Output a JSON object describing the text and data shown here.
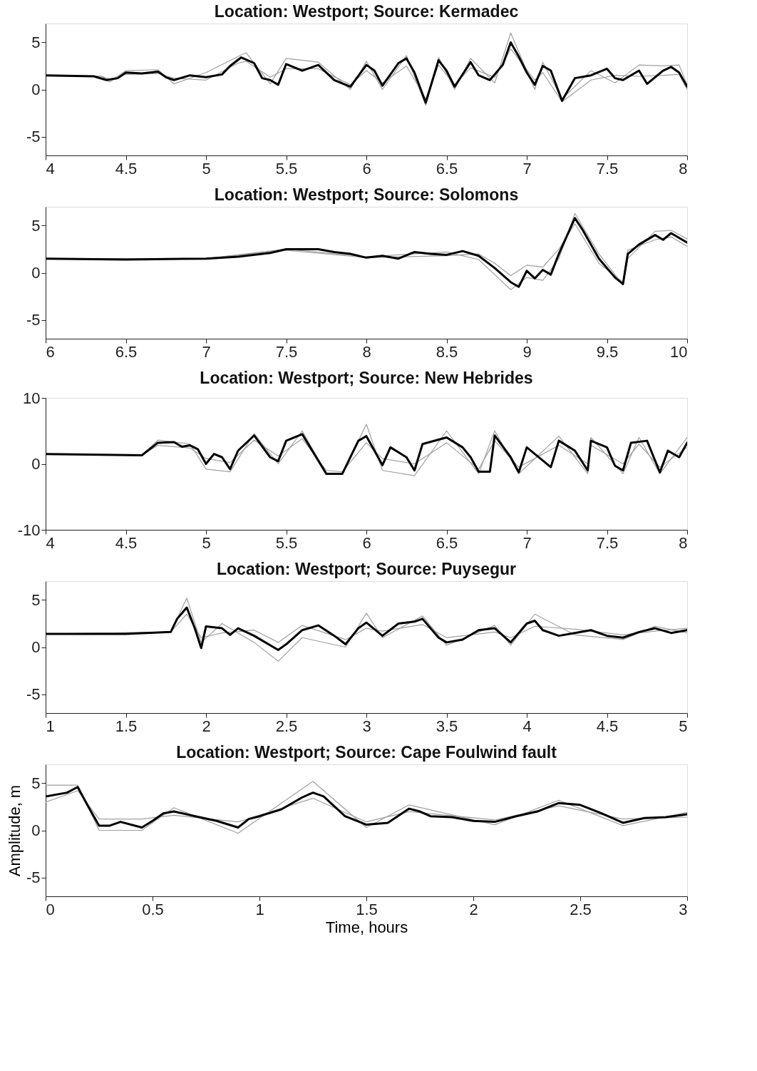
{
  "chart_data": [
    {
      "type": "line",
      "title": "Location: Westport; Source: Kermadec",
      "xlim": [
        4,
        8
      ],
      "ylim": [
        -7,
        7
      ],
      "xticks": [
        4,
        4.5,
        5,
        5.5,
        6,
        6.5,
        7,
        7.5,
        8
      ],
      "yticks": [
        -5,
        0,
        5
      ],
      "grid": false,
      "series": [
        {
          "color": "#a0a0a0",
          "x": [
            4,
            4.35,
            4.4,
            4.5,
            4.7,
            4.8,
            5,
            5.2,
            5.25,
            5.4,
            5.5,
            5.7,
            5.9,
            6,
            6.1,
            6.25,
            6.37,
            6.45,
            6.55,
            6.65,
            6.8,
            6.9,
            7.05,
            7.1,
            7.22,
            7.4,
            7.55,
            7.7,
            7.85,
            7.95,
            8
          ],
          "values": [
            1.5,
            1.4,
            0.8,
            2.0,
            2.1,
            0.6,
            1.8,
            3.5,
            3.9,
            0.6,
            3.3,
            2.9,
            0.0,
            3.0,
            0.0,
            3.6,
            -1.7,
            3.4,
            0.0,
            3.3,
            0.7,
            6.0,
            0.0,
            2.9,
            -1.0,
            2.0,
            0.7,
            2.6,
            2.5,
            2.6,
            0.5
          ]
        },
        {
          "color": "#a0a0a0",
          "x": [
            4,
            4.35,
            4.4,
            4.5,
            4.7,
            4.8,
            5,
            5.2,
            5.25,
            5.4,
            5.5,
            5.7,
            5.9,
            6,
            6.1,
            6.25,
            6.37,
            6.45,
            6.55,
            6.65,
            6.8,
            6.9,
            7.05,
            7.1,
            7.22,
            7.4,
            7.55,
            7.7,
            7.85,
            7.95,
            8
          ],
          "values": [
            1.5,
            1.4,
            1.1,
            1.6,
            1.7,
            1.2,
            1.0,
            2.8,
            3.0,
            1.3,
            2.2,
            2.2,
            0.5,
            2.0,
            0.7,
            2.5,
            -1.0,
            2.6,
            0.5,
            2.3,
            1.3,
            4.3,
            1.0,
            1.8,
            -1.3,
            1.0,
            1.5,
            1.4,
            1.5,
            1.6,
            0.0
          ]
        },
        {
          "color": "#000000",
          "x": [
            4,
            4.3,
            4.38,
            4.45,
            4.5,
            4.6,
            4.7,
            4.75,
            4.8,
            4.9,
            5,
            5.1,
            5.15,
            5.22,
            5.3,
            5.35,
            5.4,
            5.45,
            5.5,
            5.6,
            5.7,
            5.8,
            5.9,
            6,
            6.05,
            6.1,
            6.2,
            6.25,
            6.3,
            6.37,
            6.45,
            6.5,
            6.55,
            6.65,
            6.7,
            6.77,
            6.85,
            6.9,
            6.95,
            7,
            7.05,
            7.1,
            7.15,
            7.22,
            7.3,
            7.4,
            7.5,
            7.55,
            7.6,
            7.7,
            7.75,
            7.85,
            7.9,
            7.95,
            8
          ],
          "values": [
            1.5,
            1.4,
            1.0,
            1.2,
            1.8,
            1.7,
            1.9,
            1.3,
            1.0,
            1.5,
            1.3,
            1.6,
            2.5,
            3.4,
            2.8,
            1.2,
            1.0,
            0.5,
            2.7,
            2.0,
            2.6,
            1.0,
            0.3,
            2.6,
            2.0,
            0.4,
            2.8,
            3.3,
            1.8,
            -1.4,
            3.1,
            2.0,
            0.3,
            2.9,
            1.5,
            1.0,
            2.6,
            5.0,
            3.5,
            1.8,
            0.5,
            2.5,
            2.0,
            -1.2,
            1.2,
            1.5,
            2.2,
            1.2,
            1.0,
            2.0,
            0.6,
            2.0,
            2.4,
            1.8,
            0.3
          ]
        }
      ]
    },
    {
      "type": "line",
      "title": "Location: Westport; Source: Solomons",
      "xlim": [
        6,
        10
      ],
      "ylim": [
        -7,
        7
      ],
      "xticks": [
        6,
        6.5,
        7,
        7.5,
        8,
        8.5,
        9,
        9.5,
        10
      ],
      "yticks": [
        -5,
        0,
        5
      ],
      "grid": false,
      "series": [
        {
          "color": "#a0a0a0",
          "x": [
            6,
            7,
            7.5,
            8,
            8.5,
            8.7,
            8.8,
            8.9,
            9,
            9.1,
            9.2,
            9.3,
            9.45,
            9.6,
            9.63,
            9.8,
            9.9,
            10
          ],
          "values": [
            1.5,
            1.5,
            2.5,
            1.7,
            2.2,
            1.4,
            -0.2,
            -1.8,
            -0.5,
            -0.8,
            1.5,
            6.3,
            2.0,
            -1.3,
            1.5,
            4.4,
            4.5,
            3.6
          ]
        },
        {
          "color": "#a0a0a0",
          "x": [
            6,
            7,
            7.5,
            8,
            8.5,
            8.7,
            8.8,
            8.9,
            9,
            9.1,
            9.2,
            9.3,
            9.45,
            9.6,
            9.63,
            9.8,
            9.9,
            10
          ],
          "values": [
            1.5,
            1.5,
            2.4,
            1.6,
            1.8,
            2.0,
            1.0,
            -0.3,
            0.8,
            0.6,
            2.5,
            5.2,
            1.0,
            -1.0,
            2.4,
            3.5,
            3.8,
            2.8
          ]
        },
        {
          "color": "#000000",
          "x": [
            6,
            6.5,
            7,
            7.2,
            7.4,
            7.5,
            7.7,
            7.8,
            7.9,
            8,
            8.1,
            8.2,
            8.3,
            8.4,
            8.5,
            8.6,
            8.7,
            8.8,
            8.9,
            8.95,
            9,
            9.05,
            9.1,
            9.15,
            9.2,
            9.3,
            9.35,
            9.45,
            9.55,
            9.6,
            9.63,
            9.7,
            9.8,
            9.85,
            9.9,
            10
          ],
          "values": [
            1.5,
            1.4,
            1.5,
            1.7,
            2.1,
            2.5,
            2.5,
            2.2,
            2.0,
            1.6,
            1.8,
            1.5,
            2.2,
            2.0,
            1.9,
            2.3,
            1.8,
            0.5,
            -1.0,
            -1.5,
            0.2,
            -0.6,
            0.3,
            -0.2,
            2.0,
            5.8,
            4.5,
            1.5,
            -0.5,
            -1.2,
            2.0,
            3.0,
            4.0,
            3.5,
            4.2,
            3.2
          ]
        }
      ]
    },
    {
      "type": "line",
      "title": "Location: Westport; Source: New Hebrides",
      "xlim": [
        4,
        8
      ],
      "ylim": [
        -10,
        10
      ],
      "xticks": [
        4,
        4.5,
        5,
        5.5,
        6,
        6.5,
        7,
        7.5,
        8
      ],
      "yticks": [
        -10,
        0,
        10
      ],
      "grid": false,
      "series": [
        {
          "color": "#a0a0a0",
          "x": [
            4,
            4.6,
            4.7,
            4.9,
            5,
            5.15,
            5.3,
            5.45,
            5.6,
            5.75,
            5.85,
            6,
            6.1,
            6.3,
            6.5,
            6.7,
            6.8,
            6.95,
            7.2,
            7.38,
            7.4,
            7.6,
            7.7,
            7.83,
            8
          ],
          "values": [
            1.5,
            1.3,
            3.6,
            3.0,
            -0.8,
            -1.2,
            4.6,
            0.0,
            5.0,
            -1.5,
            -1.5,
            6.0,
            -1.0,
            -1.8,
            5.0,
            -1.5,
            5.0,
            -1.5,
            4.2,
            -1.5,
            4.0,
            -1.5,
            4.0,
            -1.5,
            4.0
          ]
        },
        {
          "color": "#a0a0a0",
          "x": [
            4,
            4.6,
            4.7,
            4.9,
            5,
            5.15,
            5.3,
            5.45,
            5.6,
            5.75,
            5.85,
            6,
            6.1,
            6.3,
            6.5,
            6.7,
            6.8,
            6.95,
            7.2,
            7.38,
            7.4,
            7.6,
            7.7,
            7.83,
            8
          ],
          "values": [
            1.5,
            1.3,
            2.8,
            2.4,
            0.8,
            0.2,
            3.6,
            1.2,
            3.8,
            -1.0,
            -1.2,
            3.2,
            0.8,
            0.0,
            3.2,
            -0.8,
            3.5,
            -0.5,
            2.8,
            0.0,
            2.8,
            0.0,
            3.0,
            -0.5,
            2.5
          ]
        },
        {
          "color": "#000000",
          "x": [
            4,
            4.6,
            4.7,
            4.8,
            4.85,
            4.9,
            4.95,
            5,
            5.05,
            5.1,
            5.15,
            5.2,
            5.3,
            5.4,
            5.45,
            5.5,
            5.6,
            5.7,
            5.75,
            5.85,
            5.95,
            6,
            6.1,
            6.15,
            6.25,
            6.3,
            6.35,
            6.5,
            6.6,
            6.65,
            6.7,
            6.77,
            6.8,
            6.9,
            6.95,
            7,
            7.1,
            7.15,
            7.2,
            7.3,
            7.38,
            7.4,
            7.5,
            7.55,
            7.6,
            7.65,
            7.75,
            7.83,
            7.88,
            7.95,
            8
          ],
          "values": [
            1.5,
            1.3,
            3.2,
            3.3,
            2.6,
            2.8,
            2.2,
            0.0,
            1.5,
            1.0,
            -0.8,
            2.0,
            4.3,
            1.0,
            0.4,
            3.5,
            4.5,
            0.5,
            -1.5,
            -1.5,
            3.5,
            4.2,
            -0.2,
            2.5,
            1.0,
            -1.0,
            3.0,
            4.0,
            2.5,
            1.0,
            -1.2,
            -1.2,
            4.3,
            1.0,
            -1.3,
            2.5,
            0.5,
            -0.5,
            3.5,
            2.0,
            -1.0,
            3.5,
            2.5,
            -0.3,
            -1.0,
            3.2,
            3.5,
            -1.3,
            2.0,
            1.0,
            3.2
          ]
        }
      ]
    },
    {
      "type": "line",
      "title": "Location: Westport; Source: Puysegur",
      "xlim": [
        1,
        5
      ],
      "ylim": [
        -7,
        7
      ],
      "xticks": [
        1,
        1.5,
        2,
        2.5,
        3,
        3.5,
        4,
        4.5,
        5
      ],
      "yticks": [
        -5,
        0,
        5
      ],
      "grid": false,
      "series": [
        {
          "color": "#a0a0a0",
          "x": [
            1,
            1.78,
            1.88,
            1.97,
            2.1,
            2.3,
            2.45,
            2.6,
            2.87,
            3,
            3.1,
            3.35,
            3.5,
            3.8,
            3.9,
            4.05,
            4.3,
            4.6,
            4.8,
            5
          ],
          "values": [
            1.4,
            1.6,
            5.2,
            0.5,
            2.5,
            0.5,
            -1.5,
            1.0,
            0.0,
            3.6,
            1.0,
            3.3,
            0.2,
            2.3,
            0.2,
            3.5,
            1.3,
            0.8,
            2.2,
            1.5
          ]
        },
        {
          "color": "#a0a0a0",
          "x": [
            1,
            1.78,
            1.88,
            1.97,
            2.1,
            2.3,
            2.45,
            2.6,
            2.87,
            3,
            3.1,
            3.35,
            3.5,
            3.8,
            3.9,
            4.05,
            4.3,
            4.6,
            4.8,
            5
          ],
          "values": [
            1.4,
            1.6,
            3.5,
            1.0,
            1.5,
            1.8,
            0.5,
            2.3,
            0.8,
            2.0,
            1.7,
            2.4,
            1.0,
            1.6,
            1.0,
            2.2,
            1.9,
            1.3,
            1.7,
            2.0
          ]
        },
        {
          "color": "#000000",
          "x": [
            1,
            1.5,
            1.78,
            1.82,
            1.88,
            1.93,
            1.97,
            2,
            2.1,
            2.15,
            2.2,
            2.3,
            2.45,
            2.5,
            2.6,
            2.7,
            2.8,
            2.87,
            2.95,
            3,
            3.1,
            3.2,
            3.3,
            3.35,
            3.45,
            3.5,
            3.6,
            3.7,
            3.8,
            3.9,
            4,
            4.05,
            4.1,
            4.2,
            4.3,
            4.4,
            4.5,
            4.6,
            4.7,
            4.8,
            4.9,
            5
          ],
          "values": [
            1.4,
            1.4,
            1.6,
            3.0,
            4.2,
            2.0,
            -0.1,
            2.2,
            2.0,
            1.3,
            2.0,
            1.2,
            -0.3,
            0.3,
            1.8,
            2.3,
            1.2,
            0.3,
            2.0,
            2.6,
            1.2,
            2.5,
            2.7,
            3.0,
            1.0,
            0.5,
            0.8,
            1.8,
            2.0,
            0.5,
            2.5,
            2.8,
            1.8,
            1.2,
            1.5,
            1.8,
            1.2,
            1.0,
            1.6,
            2.0,
            1.5,
            1.8
          ]
        }
      ]
    },
    {
      "type": "line",
      "title": "Location: Westport; Source: Cape Foulwind fault",
      "xlabel": "Time, hours",
      "ylabel": "Amplitude, m",
      "xlim": [
        0,
        3
      ],
      "ylim": [
        -7,
        7
      ],
      "xticks": [
        0,
        0.5,
        1,
        1.5,
        2,
        2.5,
        3
      ],
      "yticks": [
        -5,
        0,
        5
      ],
      "grid": false,
      "series": [
        {
          "color": "#a0a0a0",
          "x": [
            0,
            0.15,
            0.25,
            0.45,
            0.6,
            0.9,
            1.25,
            1.5,
            1.7,
            2.1,
            2.4,
            2.7,
            3
          ],
          "values": [
            4.8,
            4.8,
            0.0,
            0.0,
            2.4,
            -0.3,
            5.2,
            0.3,
            2.7,
            0.6,
            3.2,
            0.5,
            1.9
          ]
        },
        {
          "color": "#a0a0a0",
          "x": [
            0,
            0.15,
            0.25,
            0.45,
            0.6,
            0.9,
            1.25,
            1.5,
            1.7,
            2.1,
            2.4,
            2.7,
            3
          ],
          "values": [
            3.0,
            4.2,
            1.2,
            1.2,
            1.6,
            0.9,
            3.4,
            0.9,
            2.0,
            1.1,
            2.6,
            1.2,
            1.4
          ]
        },
        {
          "color": "#000000",
          "x": [
            0,
            0.1,
            0.15,
            0.2,
            0.25,
            0.3,
            0.35,
            0.45,
            0.5,
            0.55,
            0.6,
            0.7,
            0.8,
            0.9,
            0.95,
            1,
            1.1,
            1.2,
            1.25,
            1.3,
            1.4,
            1.5,
            1.6,
            1.7,
            1.75,
            1.8,
            1.9,
            2,
            2.1,
            2.2,
            2.3,
            2.4,
            2.5,
            2.6,
            2.7,
            2.8,
            2.9,
            3
          ],
          "values": [
            3.6,
            4.0,
            4.6,
            2.5,
            0.5,
            0.5,
            0.9,
            0.3,
            1.0,
            1.8,
            2.0,
            1.5,
            1.0,
            0.3,
            1.2,
            1.5,
            2.2,
            3.5,
            4.0,
            3.6,
            1.5,
            0.6,
            0.8,
            2.3,
            2.0,
            1.5,
            1.4,
            1.0,
            0.9,
            1.5,
            2.0,
            2.9,
            2.7,
            1.8,
            0.8,
            1.3,
            1.4,
            1.7
          ]
        }
      ]
    }
  ]
}
